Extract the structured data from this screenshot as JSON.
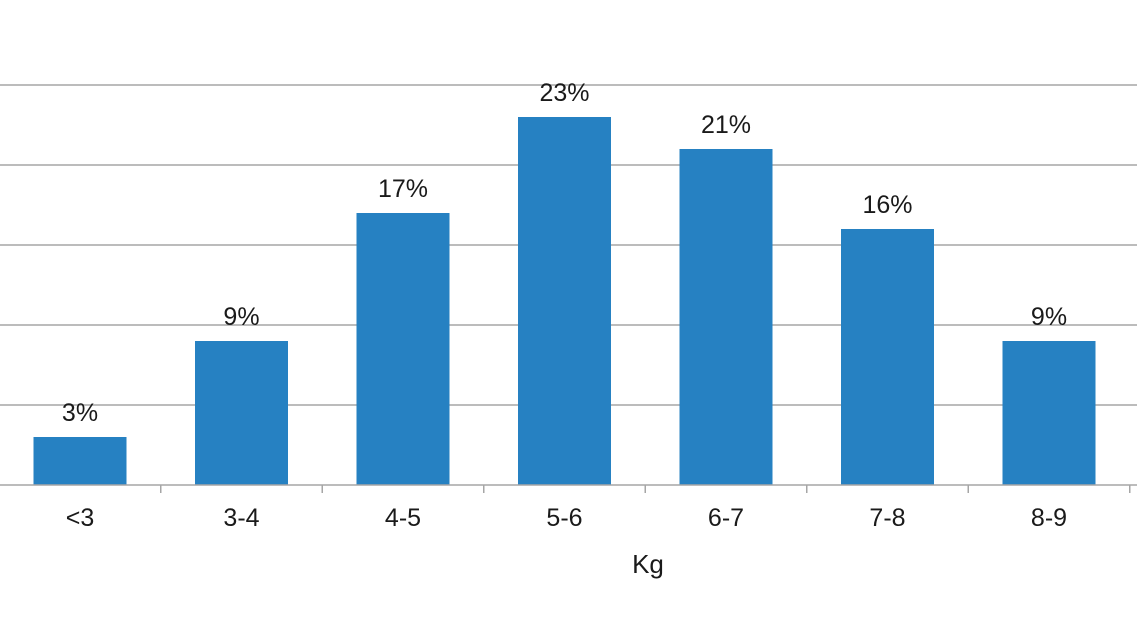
{
  "chart_data": {
    "type": "bar",
    "title": "",
    "xlabel": "Kg",
    "ylabel": "",
    "categories": [
      "<3",
      "3-4",
      "4-5",
      "5-6",
      "6-7",
      "7-8",
      "8-9"
    ],
    "values": [
      3,
      9,
      17,
      23,
      21,
      16,
      9
    ],
    "data_labels": [
      "3%",
      "9%",
      "17%",
      "23%",
      "21%",
      "16%",
      "9%"
    ],
    "ylim": [
      0,
      25
    ],
    "y_grid_step": 5,
    "grid": true,
    "legend": "none",
    "colors": {
      "bar": "#2681c2",
      "grid": "#a6a6a6",
      "text": "#1a1a1a"
    }
  }
}
